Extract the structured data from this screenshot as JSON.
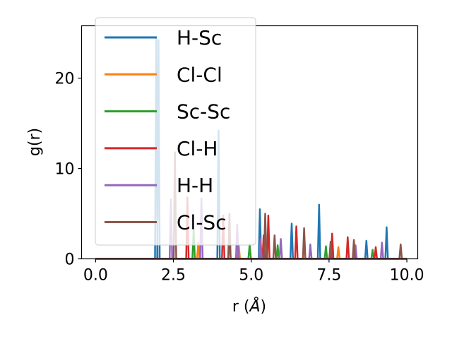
{
  "chart_data": {
    "type": "line",
    "xlabel_prefix": "r (",
    "xlabel_unit": "Å",
    "xlabel_suffix": ")",
    "ylabel": "g(r)",
    "xlim": [
      -0.45,
      10.35
    ],
    "ylim": [
      0,
      25.8
    ],
    "xticks": [
      0.0,
      2.5,
      5.0,
      7.5,
      10.0
    ],
    "xtick_labels": [
      "0.0",
      "2.5",
      "5.0",
      "7.5",
      "10.0"
    ],
    "yticks": [
      0,
      10,
      20
    ],
    "ytick_labels": [
      "0",
      "10",
      "20"
    ],
    "grid": false,
    "legend_position": "top-left",
    "series": [
      {
        "name": "H-Sc",
        "color": "#1f77b4",
        "peaks": [
          [
            1.95,
            24.5
          ],
          [
            2.02,
            24.2
          ],
          [
            3.95,
            14.2
          ],
          [
            5.28,
            5.5
          ],
          [
            6.3,
            3.9
          ],
          [
            7.18,
            6.0
          ],
          [
            8.7,
            2.0
          ],
          [
            9.35,
            3.5
          ]
        ]
      },
      {
        "name": "Cl-Cl",
        "color": "#ff7f0e",
        "peaks": [
          [
            3.3,
            1.8
          ],
          [
            4.6,
            1.5
          ],
          [
            6.7,
            1.8
          ],
          [
            7.8,
            1.3
          ]
        ]
      },
      {
        "name": "Sc-Sc",
        "color": "#2ca02c",
        "peaks": [
          [
            3.15,
            3.3
          ],
          [
            4.3,
            2.2
          ],
          [
            4.95,
            1.6
          ],
          [
            5.85,
            1.5
          ],
          [
            7.4,
            1.4
          ],
          [
            8.9,
            1.0
          ]
        ]
      },
      {
        "name": "Cl-H",
        "color": "#d62728",
        "peaks": [
          [
            2.95,
            6.8
          ],
          [
            4.1,
            4.8
          ],
          [
            5.4,
            2.6
          ],
          [
            5.55,
            4.8
          ],
          [
            6.45,
            3.6
          ],
          [
            7.6,
            2.8
          ],
          [
            8.1,
            2.4
          ],
          [
            9.0,
            1.3
          ]
        ]
      },
      {
        "name": "H-H",
        "color": "#9467bd",
        "peaks": [
          [
            2.42,
            6.6
          ],
          [
            3.4,
            6.7
          ],
          [
            4.55,
            3.8
          ],
          [
            5.3,
            2.2
          ],
          [
            5.95,
            2.2
          ],
          [
            6.9,
            1.6
          ],
          [
            8.35,
            1.5
          ],
          [
            9.2,
            1.8
          ]
        ]
      },
      {
        "name": "Cl-Sc",
        "color": "#8c564b",
        "peaks": [
          [
            2.55,
            11.8
          ],
          [
            4.3,
            5.0
          ],
          [
            5.45,
            5.0
          ],
          [
            5.75,
            2.6
          ],
          [
            6.7,
            3.4
          ],
          [
            7.55,
            1.9
          ],
          [
            8.3,
            2.1
          ],
          [
            9.8,
            1.6
          ]
        ]
      }
    ]
  }
}
